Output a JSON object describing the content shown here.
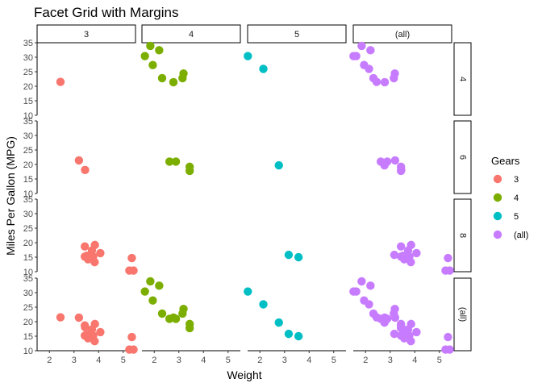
{
  "chart_data": {
    "type": "scatter",
    "title": "Facet Grid with Margins",
    "xlabel": "Weight",
    "ylabel": "Miles Per Gallon (MPG)",
    "xlim": [
      1.5,
      5.5
    ],
    "ylim": [
      10,
      35
    ],
    "x_ticks": [
      2,
      3,
      4,
      5
    ],
    "y_ticks": [
      10,
      15,
      20,
      25,
      30,
      35
    ],
    "grid": false,
    "legend_position": "right",
    "legend": {
      "title": "Gears",
      "entries": [
        {
          "label": "3",
          "color": "#F8766D"
        },
        {
          "label": "4",
          "color": "#7CAE00"
        },
        {
          "label": "5",
          "color": "#00BFC4"
        },
        {
          "label": "(all)",
          "color": "#C77CFF"
        }
      ]
    },
    "col_facets": [
      "3",
      "4",
      "5",
      "(all)"
    ],
    "row_facets": [
      "4",
      "6",
      "8",
      "(all)"
    ],
    "series": [
      {
        "gear": "3",
        "points": [
          {
            "cyl": "4",
            "x": 2.45,
            "y": 21.5
          },
          {
            "cyl": "6",
            "x": 3.2,
            "y": 21.4
          },
          {
            "cyl": "6",
            "x": 3.45,
            "y": 18.1
          },
          {
            "cyl": "8",
            "x": 3.44,
            "y": 18.7
          },
          {
            "cyl": "8",
            "x": 3.57,
            "y": 14.3
          },
          {
            "cyl": "8",
            "x": 4.07,
            "y": 16.4
          },
          {
            "cyl": "8",
            "x": 3.73,
            "y": 17.3
          },
          {
            "cyl": "8",
            "x": 3.78,
            "y": 15.2
          },
          {
            "cyl": "8",
            "x": 5.25,
            "y": 10.4
          },
          {
            "cyl": "8",
            "x": 5.42,
            "y": 10.4
          },
          {
            "cyl": "8",
            "x": 5.35,
            "y": 14.7
          },
          {
            "cyl": "8",
            "x": 3.52,
            "y": 15.5
          },
          {
            "cyl": "8",
            "x": 3.44,
            "y": 15.2
          },
          {
            "cyl": "8",
            "x": 3.84,
            "y": 13.3
          },
          {
            "cyl": "8",
            "x": 3.85,
            "y": 19.2
          }
        ]
      },
      {
        "gear": "4",
        "points": [
          {
            "cyl": "4",
            "x": 2.32,
            "y": 22.8
          },
          {
            "cyl": "4",
            "x": 3.19,
            "y": 24.4
          },
          {
            "cyl": "4",
            "x": 3.15,
            "y": 22.8
          },
          {
            "cyl": "4",
            "x": 2.2,
            "y": 32.4
          },
          {
            "cyl": "4",
            "x": 1.62,
            "y": 30.4
          },
          {
            "cyl": "4",
            "x": 1.84,
            "y": 33.9
          },
          {
            "cyl": "4",
            "x": 1.94,
            "y": 27.3
          },
          {
            "cyl": "4",
            "x": 2.78,
            "y": 21.4
          },
          {
            "cyl": "6",
            "x": 2.62,
            "y": 21.0
          },
          {
            "cyl": "6",
            "x": 2.88,
            "y": 21.0
          },
          {
            "cyl": "6",
            "x": 3.44,
            "y": 19.2
          },
          {
            "cyl": "6",
            "x": 3.44,
            "y": 17.8
          }
        ]
      },
      {
        "gear": "5",
        "points": [
          {
            "cyl": "4",
            "x": 2.14,
            "y": 26.0
          },
          {
            "cyl": "4",
            "x": 1.51,
            "y": 30.4
          },
          {
            "cyl": "6",
            "x": 2.77,
            "y": 19.7
          },
          {
            "cyl": "8",
            "x": 3.17,
            "y": 15.8
          },
          {
            "cyl": "8",
            "x": 3.57,
            "y": 15.0
          }
        ]
      }
    ]
  }
}
